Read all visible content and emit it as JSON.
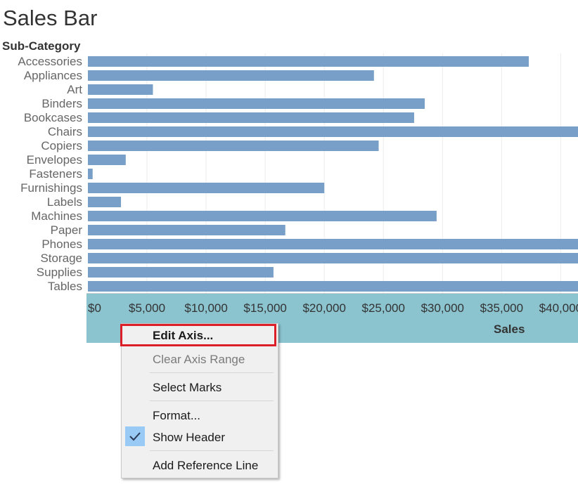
{
  "sheet": {
    "title": "Sales Bar",
    "row_header": "Sub-Category"
  },
  "chart_data": {
    "type": "bar",
    "orientation": "horizontal",
    "title": "Sales Bar",
    "ylabel": "Sub-Category",
    "xlabel": "Sales",
    "categories": [
      "Accessories",
      "Appliances",
      "Art",
      "Binders",
      "Bookcases",
      "Chairs",
      "Copiers",
      "Envelopes",
      "Fasteners",
      "Furnishings",
      "Labels",
      "Machines",
      "Paper",
      "Phones",
      "Storage",
      "Supplies",
      "Tables"
    ],
    "values": [
      37300,
      24200,
      5500,
      28500,
      27600,
      42000,
      24600,
      3200,
      400,
      20000,
      2800,
      29500,
      16700,
      42000,
      42000,
      15700,
      42000
    ],
    "x_ticks": [
      "$0",
      "$5,000",
      "$10,000",
      "$15,000",
      "$20,000",
      "$25,000",
      "$30,000",
      "$35,000",
      "$40,000"
    ],
    "xlim": [
      0,
      41500
    ],
    "grid": true,
    "bar_color": "#779fc7"
  },
  "colors": {
    "axis_band": "#8bc3cf",
    "highlight": "#dc1e28",
    "check_bg": "#99c9f5"
  },
  "context_menu": {
    "items": [
      {
        "label": "Edit Axis...",
        "enabled": true,
        "highlighted": true
      },
      {
        "label": "Clear Axis Range",
        "enabled": false
      },
      {
        "label": "Select Marks",
        "enabled": true
      },
      {
        "label": "Format...",
        "enabled": true
      },
      {
        "label": "Show Header",
        "enabled": true,
        "checked": true
      },
      {
        "label": "Add Reference Line",
        "enabled": true
      }
    ],
    "check_icon": "checkmark-icon"
  }
}
